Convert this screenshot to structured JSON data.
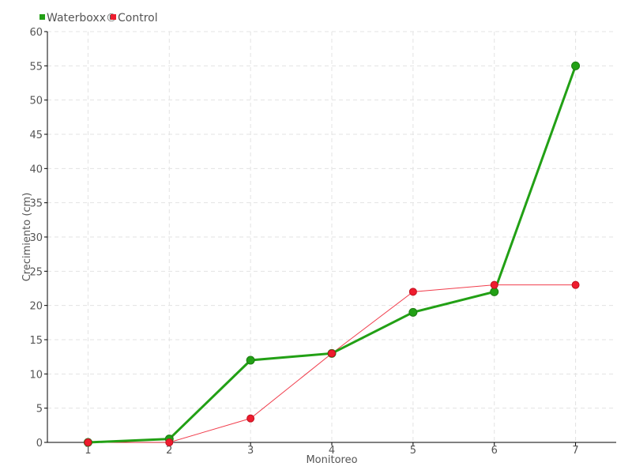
{
  "chart_data": {
    "type": "line",
    "title": "",
    "xlabel": "Monitoreo",
    "ylabel": "Crecimiento (cm)",
    "x": [
      1,
      2,
      3,
      4,
      5,
      6,
      7
    ],
    "xlim": [
      0.5,
      7.5
    ],
    "ylim": [
      0,
      60
    ],
    "yticks": [
      0,
      5,
      10,
      15,
      20,
      25,
      30,
      35,
      40,
      45,
      50,
      55,
      60
    ],
    "grid": true,
    "legend_position": "top-left",
    "series": [
      {
        "name": "Waterboxx®",
        "color": "#22a015",
        "values": [
          0,
          0.5,
          12,
          13,
          19,
          22,
          55
        ]
      },
      {
        "name": "Control",
        "color": "#ee1c2e",
        "values": [
          0,
          0,
          3.5,
          13,
          22,
          23,
          23
        ]
      }
    ]
  }
}
